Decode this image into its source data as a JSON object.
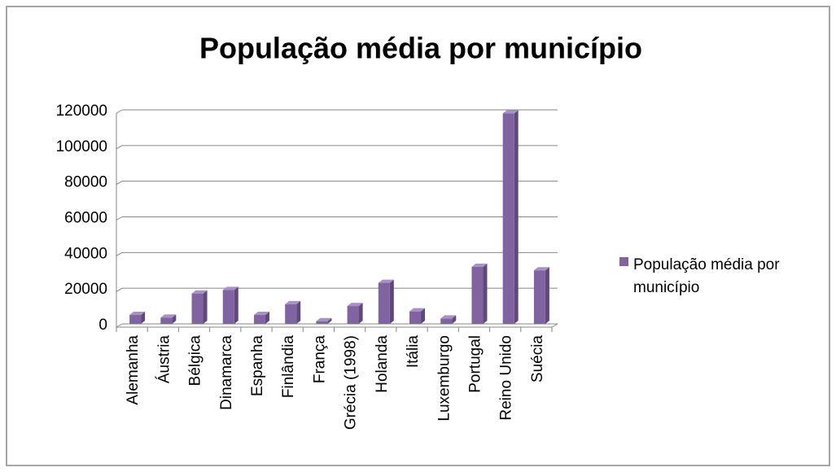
{
  "chart_data": {
    "type": "bar",
    "title": "População média por município",
    "categories": [
      "Alemanha",
      "Áustria",
      "Bélgica",
      "Dinamarca",
      "Espanha",
      "Finlândia",
      "França",
      "Grécia (1998)",
      "Holanda",
      "Itália",
      "Luxemburgo",
      "Portugal",
      "Reino Unido",
      "Suécia"
    ],
    "series": [
      {
        "name": "População média por município",
        "color": "#8064a2",
        "values": [
          5000,
          3500,
          17000,
          19000,
          5000,
          11000,
          1500,
          10000,
          23000,
          7000,
          3000,
          32000,
          118000,
          30000
        ]
      }
    ],
    "ylim": [
      0,
      120000
    ],
    "yticks": [
      0,
      20000,
      40000,
      60000,
      80000,
      100000,
      120000
    ],
    "grid": true,
    "legend": "right"
  }
}
